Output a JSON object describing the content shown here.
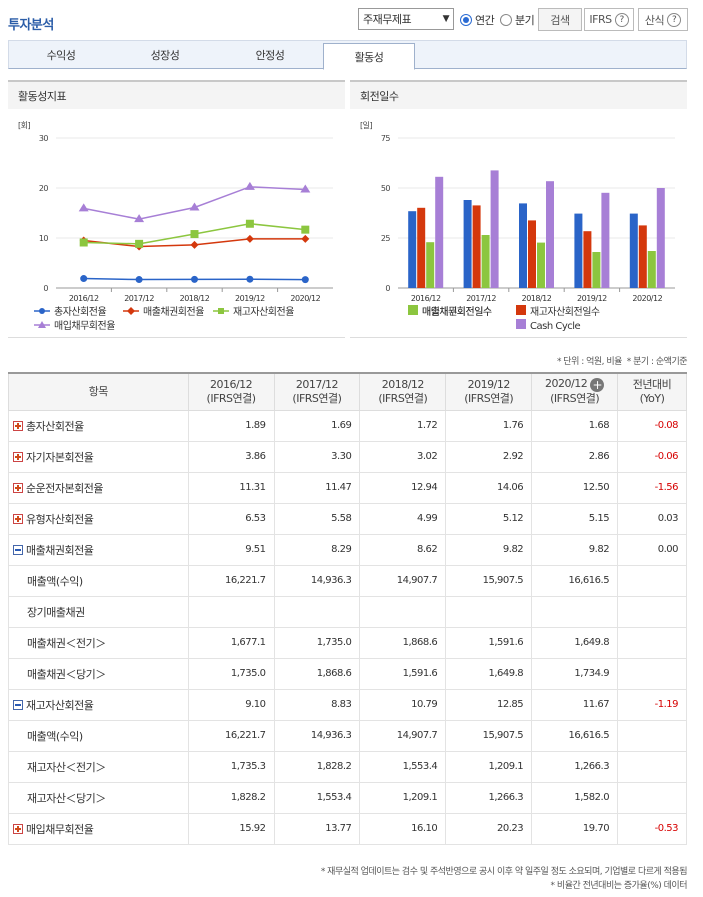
{
  "header": {
    "title": "투자분석",
    "select_value": "주재무제표",
    "radio_annual": "연간",
    "radio_quarter": "분기",
    "search_label": "검색",
    "ifrs_label": "IFRS",
    "formula_label": "산식"
  },
  "tabs": [
    {
      "label": "수익성"
    },
    {
      "label": "성장성"
    },
    {
      "label": "안정성"
    },
    {
      "label": "활동성"
    }
  ],
  "active_tab": "활동성",
  "panels": {
    "left_title": "활동성지표",
    "right_title": "회전일수"
  },
  "chart_data": [
    {
      "type": "line",
      "title": "활동성지표",
      "unit_label": "[회]",
      "categories": [
        "2016/12",
        "2017/12",
        "2018/12",
        "2019/12",
        "2020/12"
      ],
      "ylim": [
        0,
        30
      ],
      "yticks": [
        "0",
        "10",
        "20",
        "30"
      ],
      "series": [
        {
          "name": "총자산회전율",
          "color": "#2a64c8",
          "marker": "circle",
          "values": [
            1.89,
            1.69,
            1.72,
            1.76,
            1.68
          ]
        },
        {
          "name": "매출채권회전율",
          "color": "#d4380d",
          "marker": "diamond",
          "values": [
            9.51,
            8.29,
            8.62,
            9.82,
            9.82
          ]
        },
        {
          "name": "재고자산회전율",
          "color": "#8cc63f",
          "marker": "square",
          "values": [
            9.1,
            8.83,
            10.79,
            12.85,
            11.67
          ]
        },
        {
          "name": "매입채무회전율",
          "color": "#a77fd6",
          "marker": "triangle",
          "values": [
            15.92,
            13.77,
            16.1,
            20.23,
            19.7
          ]
        }
      ]
    },
    {
      "type": "bar",
      "title": "회전일수",
      "unit_label": "[일]",
      "categories": [
        "2016/12",
        "2017/12",
        "2018/12",
        "2019/12",
        "2020/12"
      ],
      "ylim": [
        0,
        75
      ],
      "yticks": [
        "0",
        "25",
        "50",
        "75"
      ],
      "series": [
        {
          "name": "매출채권회전일수",
          "color": "#2a64c8",
          "values": [
            38.4,
            44.0,
            42.3,
            37.2,
            37.2
          ]
        },
        {
          "name": "재고자산회전일수",
          "color": "#d4380d",
          "values": [
            40.1,
            41.3,
            33.8,
            28.4,
            31.3
          ]
        },
        {
          "name": "매입채무회전일수",
          "color": "#8cc63f",
          "values": [
            22.9,
            26.5,
            22.7,
            18.0,
            18.5
          ]
        },
        {
          "name": "Cash Cycle",
          "color": "#a77fd6",
          "values": [
            55.6,
            58.8,
            53.4,
            47.6,
            50.0
          ]
        }
      ]
    }
  ],
  "notes": {
    "unit": "* 단위 : 억원, 비율",
    "quarter": "* 분기 : 순액기준",
    "footnote1": "* 재무실적 업데이트는 검수 및 주석반영으로 공시 이후 약 일주일 정도 소요되며, 기업별로 다르게 적용됨",
    "footnote2": "* 비율간 전년대비는 증가율(%) 데이터"
  },
  "table": {
    "header_item": "항목",
    "columns": [
      {
        "year": "2016/12",
        "basis": "(IFRS연결)"
      },
      {
        "year": "2017/12",
        "basis": "(IFRS연결)"
      },
      {
        "year": "2018/12",
        "basis": "(IFRS연결)"
      },
      {
        "year": "2019/12",
        "basis": "(IFRS연결)"
      },
      {
        "year": "2020/12",
        "basis": "(IFRS연결)"
      }
    ],
    "yoy_label": "전년대비",
    "yoy_sub": "(YoY)",
    "rows": [
      {
        "label": "총자산회전율",
        "toggle": "plus",
        "values": [
          "1.89",
          "1.69",
          "1.72",
          "1.76",
          "1.68"
        ],
        "yoy": "-0.08"
      },
      {
        "label": "자기자본회전율",
        "toggle": "plus",
        "values": [
          "3.86",
          "3.30",
          "3.02",
          "2.92",
          "2.86"
        ],
        "yoy": "-0.06"
      },
      {
        "label": "순운전자본회전율",
        "toggle": "plus",
        "values": [
          "11.31",
          "11.47",
          "12.94",
          "14.06",
          "12.50"
        ],
        "yoy": "-1.56"
      },
      {
        "label": "유형자산회전율",
        "toggle": "plus",
        "values": [
          "6.53",
          "5.58",
          "4.99",
          "5.12",
          "5.15"
        ],
        "yoy": "0.03"
      },
      {
        "label": "매출채권회전율",
        "toggle": "minus",
        "values": [
          "9.51",
          "8.29",
          "8.62",
          "9.82",
          "9.82"
        ],
        "yoy": "0.00"
      },
      {
        "label": "매출액(수익)",
        "toggle": "",
        "values": [
          "16,221.7",
          "14,936.3",
          "14,907.7",
          "15,907.5",
          "16,616.5"
        ],
        "yoy": ""
      },
      {
        "label": "장기매출채권",
        "toggle": "",
        "values": [
          "",
          "",
          "",
          "",
          ""
        ],
        "yoy": ""
      },
      {
        "label": "매출채권＜전기＞",
        "toggle": "",
        "values": [
          "1,677.1",
          "1,735.0",
          "1,868.6",
          "1,591.6",
          "1,649.8"
        ],
        "yoy": ""
      },
      {
        "label": "매출채권＜당기＞",
        "toggle": "",
        "values": [
          "1,735.0",
          "1,868.6",
          "1,591.6",
          "1,649.8",
          "1,734.9"
        ],
        "yoy": ""
      },
      {
        "label": "재고자산회전율",
        "toggle": "minus",
        "values": [
          "9.10",
          "8.83",
          "10.79",
          "12.85",
          "11.67"
        ],
        "yoy": "-1.19"
      },
      {
        "label": "매출액(수익)",
        "toggle": "",
        "values": [
          "16,221.7",
          "14,936.3",
          "14,907.7",
          "15,907.5",
          "16,616.5"
        ],
        "yoy": ""
      },
      {
        "label": "재고자산＜전기＞",
        "toggle": "",
        "values": [
          "1,735.3",
          "1,828.2",
          "1,553.4",
          "1,209.1",
          "1,266.3"
        ],
        "yoy": ""
      },
      {
        "label": "재고자산＜당기＞",
        "toggle": "",
        "values": [
          "1,828.2",
          "1,553.4",
          "1,209.1",
          "1,266.3",
          "1,582.0"
        ],
        "yoy": ""
      },
      {
        "label": "매입채무회전율",
        "toggle": "plus",
        "values": [
          "15.92",
          "13.77",
          "16.10",
          "20.23",
          "19.70"
        ],
        "yoy": "-0.53"
      }
    ]
  }
}
